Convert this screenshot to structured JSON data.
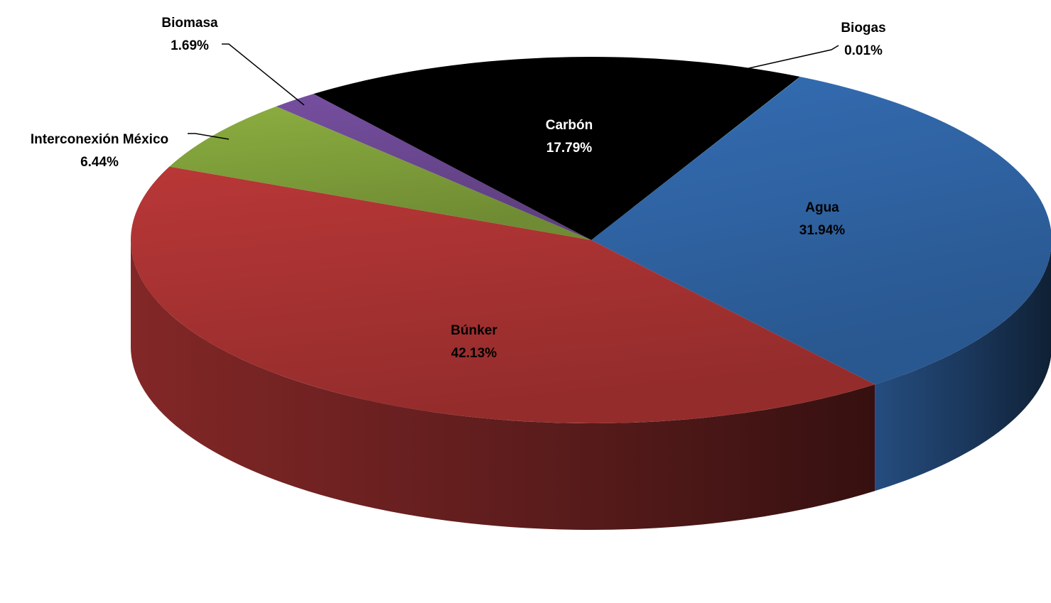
{
  "chart_data": {
    "type": "pie",
    "title": "",
    "slices": [
      {
        "label": "Agua",
        "value": 31.94,
        "value_label": "31.94%",
        "color": "#2f63a3",
        "label_color": "#000000"
      },
      {
        "label": "Búnker",
        "value": 42.13,
        "value_label": "42.13%",
        "color": "#a83232",
        "label_color": "#000000"
      },
      {
        "label": "Interconexión México",
        "value": 6.44,
        "value_label": "6.44%",
        "color": "#7e9e3a",
        "label_color": "#000000"
      },
      {
        "label": "Biomasa",
        "value": 1.69,
        "value_label": "1.69%",
        "color": "#6b4891",
        "label_color": "#000000"
      },
      {
        "label": "Carbón",
        "value": 17.79,
        "value_label": "17.79%",
        "color": "#000000",
        "label_color": "#ffffff"
      },
      {
        "label": "Biogas",
        "value": 0.01,
        "value_label": "0.01%",
        "color": "#4aa3c8",
        "label_color": "#000000"
      }
    ],
    "style": "3d",
    "legend": "none"
  }
}
